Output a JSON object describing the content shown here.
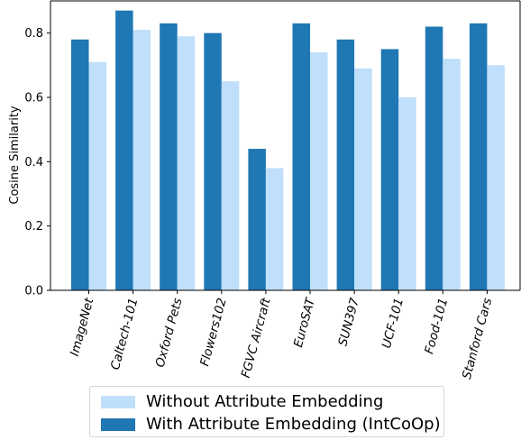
{
  "chart_data": {
    "type": "bar",
    "categories": [
      "ImageNet",
      "Caltech-101",
      "Oxford Pets",
      "Flowers102",
      "FGVC Aircraft",
      "EuroSAT",
      "SUN397",
      "UCF-101",
      "Food-101",
      "Stanford Cars"
    ],
    "series": [
      {
        "name": "With Attribute Embedding (IntCoOp)",
        "color": "#1f77b4",
        "values": [
          0.78,
          0.87,
          0.83,
          0.8,
          0.44,
          0.83,
          0.78,
          0.75,
          0.82,
          0.83
        ]
      },
      {
        "name": "Without Attribute Embedding",
        "color": "#bfdffb",
        "values": [
          0.71,
          0.81,
          0.79,
          0.65,
          0.38,
          0.74,
          0.69,
          0.6,
          0.72,
          0.7
        ]
      }
    ],
    "ylabel": "Cosine Similarity",
    "ylim": [
      0,
      0.9
    ],
    "yticks": [
      "0.0",
      "0.2",
      "0.4",
      "0.6",
      "0.8"
    ],
    "grid": false,
    "legend_position": "bottom"
  },
  "legend": {
    "items": [
      {
        "label": "Without Attribute Embedding",
        "color": "#bfdffb"
      },
      {
        "label": "With Attribute Embedding (IntCoOp)",
        "color": "#1f77b4"
      }
    ]
  }
}
